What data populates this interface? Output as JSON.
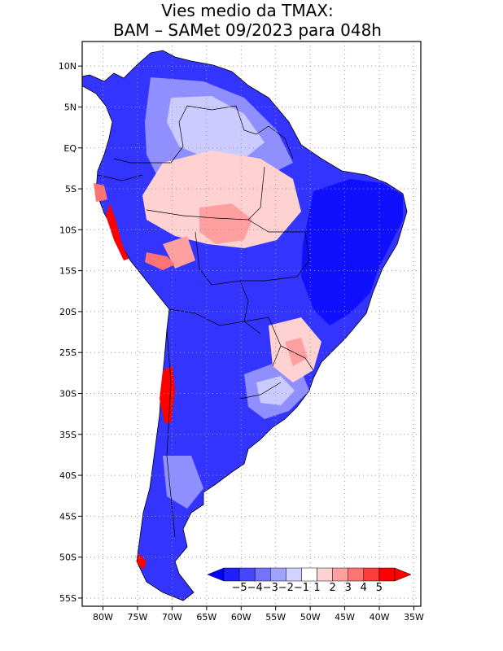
{
  "title_line1": "Vies medio da TMAX:",
  "title_line2": "BAM – SAMet 09/2023  para 048h",
  "lat_labels": [
    "10N",
    "5N",
    "EQ",
    "5S",
    "10S",
    "15S",
    "20S",
    "25S",
    "30S",
    "35S",
    "40S",
    "45S",
    "50S",
    "55S"
  ],
  "lon_labels": [
    "80W",
    "75W",
    "70W",
    "65W",
    "60W",
    "55W",
    "50W",
    "45W",
    "40W",
    "35W"
  ],
  "lat_values": [
    10,
    5,
    0,
    -5,
    -10,
    -15,
    -20,
    -25,
    -30,
    -35,
    -40,
    -45,
    -50,
    -55
  ],
  "lon_values": [
    -80,
    -75,
    -70,
    -65,
    -60,
    -55,
    -50,
    -45,
    -40,
    -35
  ],
  "extent": {
    "lon_min": -83,
    "lon_max": -34,
    "lat_min": -56,
    "lat_max": 13
  },
  "colorbar": {
    "labels": [
      "−5",
      "−4",
      "−3",
      "−2",
      "−1",
      "1",
      "2",
      "3",
      "4",
      "5"
    ],
    "colors": [
      "#1f1fff",
      "#4646ff",
      "#7373ff",
      "#a0a0ff",
      "#d2d2ff",
      "#ffffff",
      "#ffd2d2",
      "#ffa0a0",
      "#ff7373",
      "#ff3c3c",
      "#ff0000"
    ],
    "under_color": "#0000ff",
    "over_color": "#ff0000"
  },
  "colors": {
    "land_blue": "#3434ff",
    "ocean": "#ffffff",
    "grid": "#9a9a9a",
    "coast": "#000000"
  }
}
